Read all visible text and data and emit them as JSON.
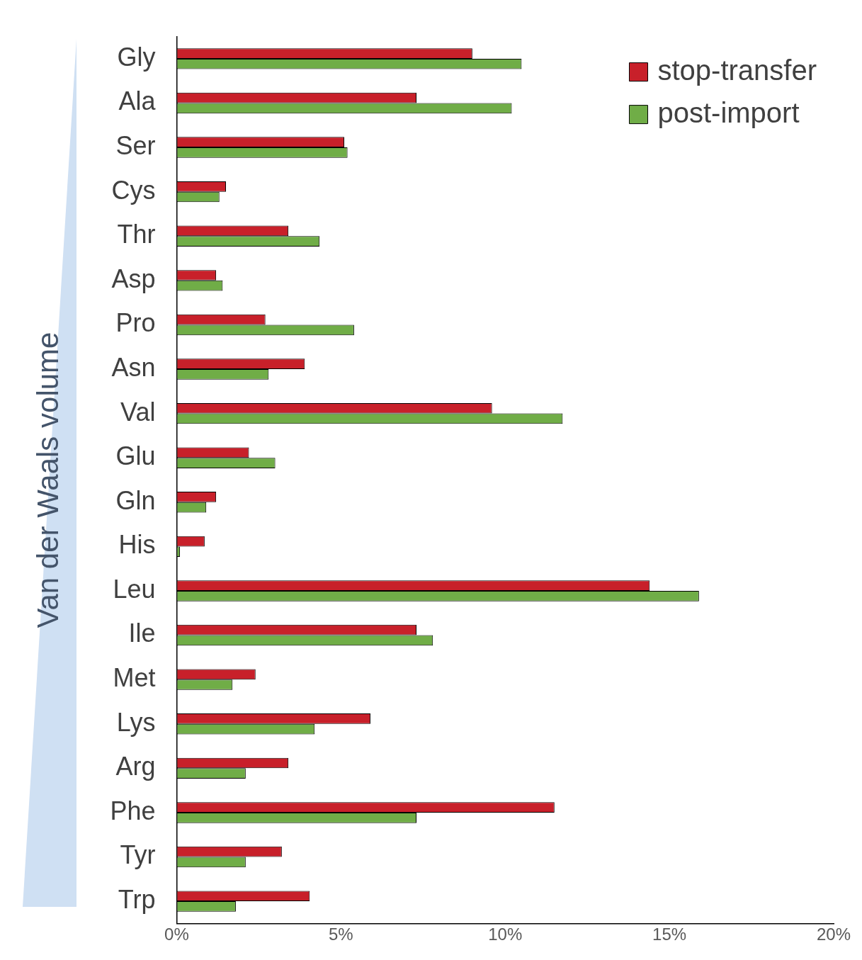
{
  "chart_data": {
    "type": "bar",
    "orientation": "horizontal",
    "ylabel": "Van der Waals volume",
    "categories": [
      "Gly",
      "Ala",
      "Ser",
      "Cys",
      "Thr",
      "Asp",
      "Pro",
      "Asn",
      "Val",
      "Glu",
      "Gln",
      "His",
      "Leu",
      "Ile",
      "Met",
      "Lys",
      "Arg",
      "Phe",
      "Tyr",
      "Trp"
    ],
    "series": [
      {
        "name": "stop-transfer",
        "color": "#c8202a",
        "values": [
          9.0,
          7.3,
          5.1,
          1.5,
          3.4,
          1.2,
          2.7,
          3.9,
          9.6,
          2.2,
          1.2,
          0.85,
          14.4,
          7.3,
          2.4,
          5.9,
          3.4,
          11.5,
          3.2,
          4.05
        ]
      },
      {
        "name": "post-import",
        "color": "#70ad47",
        "values": [
          10.5,
          10.2,
          5.2,
          1.3,
          4.35,
          1.4,
          5.4,
          2.8,
          11.75,
          3.0,
          0.9,
          0.1,
          15.9,
          7.8,
          1.7,
          4.2,
          2.1,
          7.3,
          2.1,
          1.8
        ]
      }
    ],
    "xlim": [
      0,
      20
    ],
    "xticks": [
      {
        "value": 0,
        "label": "0%"
      },
      {
        "value": 5,
        "label": "5%"
      },
      {
        "value": 10,
        "label": "10%"
      },
      {
        "value": 15,
        "label": "15%"
      },
      {
        "value": 20,
        "label": "20%"
      }
    ],
    "grid": false,
    "legend": "top right"
  }
}
